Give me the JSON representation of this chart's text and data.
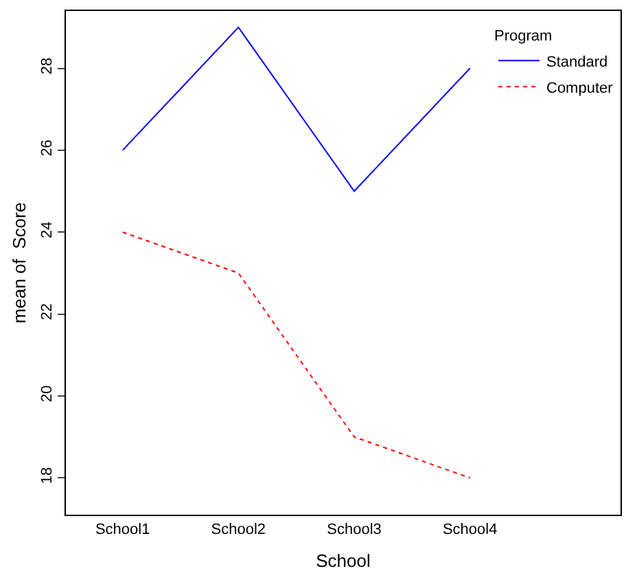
{
  "chart_data": {
    "type": "line",
    "xlabel": "School",
    "ylabel": "mean of  Score",
    "legend_title": "Program",
    "categories": [
      "School1",
      "School2",
      "School3",
      "School4"
    ],
    "series": [
      {
        "name": "Standard",
        "color": "#0000ff",
        "line_style": "solid",
        "values": [
          26,
          29,
          25,
          28
        ]
      },
      {
        "name": "Computer",
        "color": "#ff0000",
        "line_style": "dotted",
        "values": [
          24,
          23,
          19,
          18
        ]
      }
    ],
    "ylim": [
      17.1,
      29.4
    ],
    "yticks": [
      18,
      20,
      22,
      24,
      26,
      28
    ],
    "legend": "top right",
    "marker": "none"
  }
}
